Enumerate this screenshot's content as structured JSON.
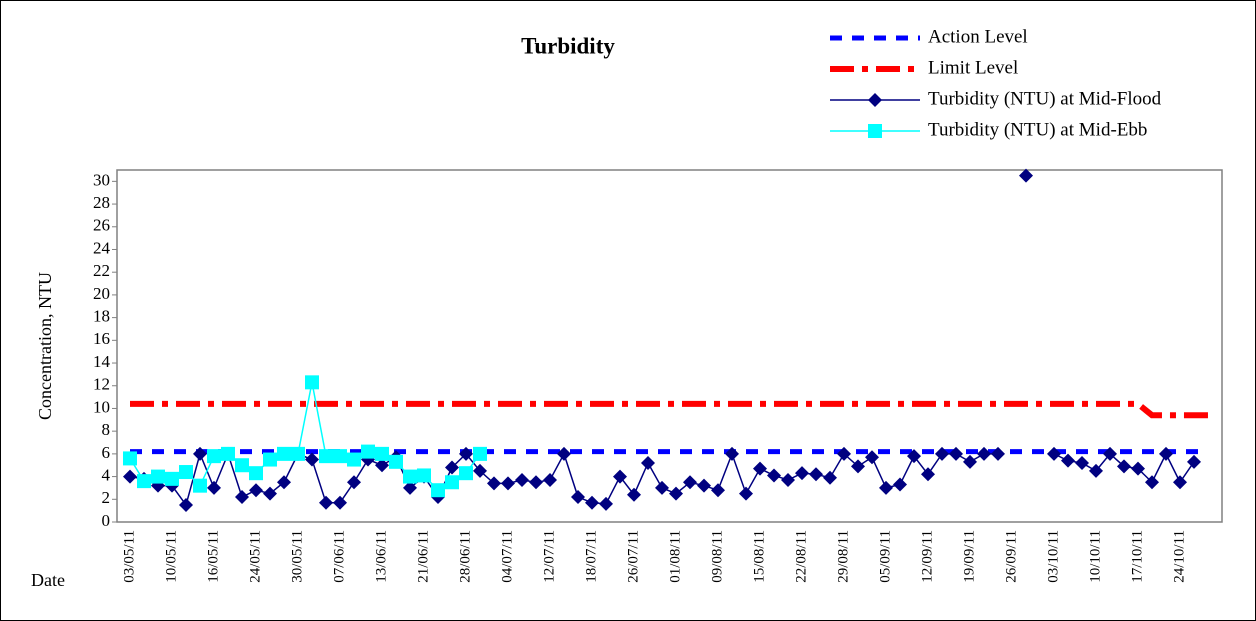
{
  "chart_data": {
    "type": "line",
    "title": "Turbidity",
    "y_label": "Concentration, NTU",
    "x_label": "Date",
    "ylim": [
      0,
      31
    ],
    "yticks": [
      0,
      2,
      4,
      6,
      8,
      10,
      12,
      14,
      16,
      18,
      20,
      22,
      24,
      26,
      28,
      30
    ],
    "legend": "top-right",
    "categories": [
      "03/05/11",
      null,
      null,
      "10/05/11",
      null,
      null,
      "16/05/11",
      null,
      null,
      "24/05/11",
      null,
      null,
      "30/05/11",
      null,
      null,
      "07/06/11",
      null,
      null,
      "13/06/11",
      null,
      null,
      "21/06/11",
      null,
      null,
      "28/06/11",
      null,
      null,
      "04/07/11",
      null,
      null,
      "12/07/11",
      null,
      null,
      "18/07/11",
      null,
      null,
      "26/07/11",
      null,
      null,
      "01/08/11",
      null,
      null,
      "09/08/11",
      null,
      null,
      "15/08/11",
      null,
      null,
      "22/08/11",
      null,
      null,
      "29/08/11",
      null,
      null,
      "05/09/11",
      null,
      null,
      "12/09/11",
      null,
      null,
      "19/09/11",
      null,
      null,
      "26/09/11",
      null,
      null,
      "03/10/11",
      null,
      null,
      "10/10/11",
      null,
      null,
      "17/10/11",
      null,
      null,
      "24/10/11",
      null,
      null
    ],
    "series": [
      {
        "name": "Action Level",
        "color": "#0000ff",
        "line_style": "dotted",
        "marker": "none",
        "values": [
          6.2,
          6.2,
          6.2,
          6.2,
          6.2,
          6.2,
          6.2,
          6.2,
          6.2,
          6.2,
          6.2,
          6.2,
          6.2,
          6.2,
          6.2,
          6.2,
          6.2,
          6.2,
          6.2,
          6.2,
          6.2,
          6.2,
          6.2,
          6.2,
          6.2,
          6.2,
          6.2,
          6.2,
          6.2,
          6.2,
          6.2,
          6.2,
          6.2,
          6.2,
          6.2,
          6.2,
          6.2,
          6.2,
          6.2,
          6.2,
          6.2,
          6.2,
          6.2,
          6.2,
          6.2,
          6.2,
          6.2,
          6.2,
          6.2,
          6.2,
          6.2,
          6.2,
          6.2,
          6.2,
          6.2,
          6.2,
          6.2,
          6.2,
          6.2,
          6.2,
          6.2,
          6.2,
          6.2,
          6.2,
          6.2,
          6.2,
          6.2,
          6.2,
          6.2,
          6.2,
          6.2,
          6.2,
          6.2,
          6.2,
          6.2,
          6.2,
          6.2,
          6.2
        ]
      },
      {
        "name": "Limit Level",
        "color": "#ff0000",
        "line_style": "dashdot",
        "marker": "none",
        "values": [
          10.4,
          10.4,
          10.4,
          10.4,
          10.4,
          10.4,
          10.4,
          10.4,
          10.4,
          10.4,
          10.4,
          10.4,
          10.4,
          10.4,
          10.4,
          10.4,
          10.4,
          10.4,
          10.4,
          10.4,
          10.4,
          10.4,
          10.4,
          10.4,
          10.4,
          10.4,
          10.4,
          10.4,
          10.4,
          10.4,
          10.4,
          10.4,
          10.4,
          10.4,
          10.4,
          10.4,
          10.4,
          10.4,
          10.4,
          10.4,
          10.4,
          10.4,
          10.4,
          10.4,
          10.4,
          10.4,
          10.4,
          10.4,
          10.4,
          10.4,
          10.4,
          10.4,
          10.4,
          10.4,
          10.4,
          10.4,
          10.4,
          10.4,
          10.4,
          10.4,
          10.4,
          10.4,
          10.4,
          10.4,
          10.4,
          10.4,
          10.4,
          10.4,
          10.4,
          10.4,
          10.4,
          10.4,
          10.4,
          9.4,
          9.4,
          9.4,
          9.4,
          9.4
        ]
      },
      {
        "name": "Turbidity (NTU) at Mid-Flood",
        "color": "#000080",
        "line_style": "solid",
        "marker": "diamond",
        "values": [
          4.0,
          3.8,
          3.2,
          3.2,
          1.5,
          6.0,
          3.0,
          6.0,
          2.2,
          2.8,
          2.5,
          3.5,
          6.0,
          5.5,
          1.7,
          1.7,
          3.5,
          5.5,
          5.0,
          5.7,
          3.0,
          4.0,
          2.2,
          4.8,
          6.0,
          4.5,
          3.4,
          3.4,
          3.7,
          3.5,
          3.7,
          6.0,
          2.2,
          1.7,
          1.6,
          4.0,
          2.4,
          5.2,
          3.0,
          2.5,
          3.5,
          3.2,
          2.8,
          6.0,
          2.5,
          4.7,
          4.1,
          3.7,
          4.3,
          4.2,
          3.9,
          6.0,
          4.9,
          5.7,
          3.0,
          3.3,
          5.8,
          4.2,
          6.0,
          6.0,
          5.3,
          6.0,
          6.0,
          null,
          30.5,
          null,
          6.0,
          5.4,
          5.2,
          4.5,
          6.0,
          4.9,
          4.7,
          3.5,
          6.0,
          3.5,
          5.3,
          null
        ]
      },
      {
        "name": "Turbidity (NTU) at Mid-Ebb",
        "color": "#00ffff",
        "line_style": "solid",
        "marker": "square",
        "values": [
          5.6,
          3.6,
          4.0,
          3.8,
          4.4,
          3.2,
          5.8,
          6.0,
          5.0,
          4.3,
          5.5,
          6.0,
          6.0,
          12.3,
          5.8,
          5.8,
          5.5,
          6.2,
          6.0,
          5.3,
          4.0,
          4.1,
          2.8,
          3.5,
          4.3,
          6.0,
          null,
          null,
          null,
          null,
          null,
          null,
          null,
          null,
          null,
          null,
          null,
          null,
          null,
          null,
          null,
          null,
          null,
          null,
          null,
          null,
          null,
          null,
          null,
          null,
          null,
          null,
          null,
          null,
          null,
          null,
          null,
          null,
          null,
          null,
          null,
          null,
          null,
          null,
          null,
          null,
          null,
          null,
          null,
          null,
          null,
          null,
          null,
          null,
          null,
          null,
          null,
          null
        ]
      }
    ]
  }
}
